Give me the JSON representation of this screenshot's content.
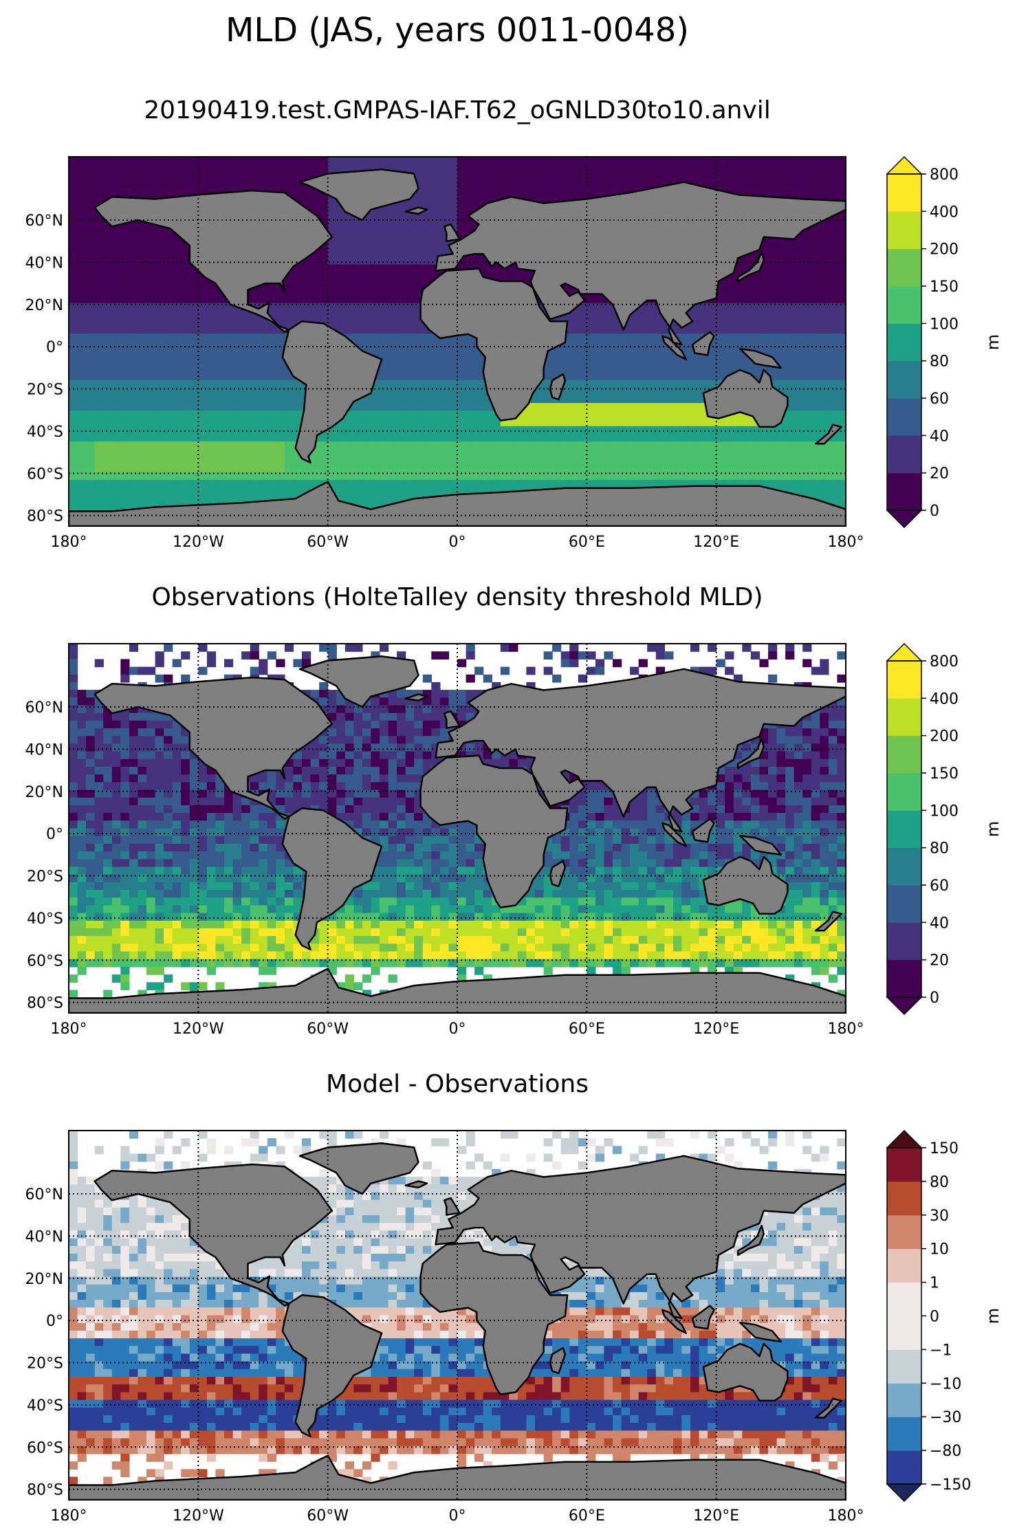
{
  "figure": {
    "title": "MLD (JAS, years 0011-0048)"
  },
  "panels": [
    {
      "title": "20190419.test.GMPAS-IAF.T62_oGNLD30to10.anvil",
      "colorbar_kind": "sequential",
      "colorbar_units": "m",
      "colorbar_ticks": [
        "0",
        "20",
        "40",
        "60",
        "80",
        "100",
        "150",
        "200",
        "400",
        "800"
      ],
      "colors": [
        "#440154",
        "#46337e",
        "#365c8d",
        "#277f8e",
        "#1fa187",
        "#4ac16d",
        "#6fc54f",
        "#bddf26",
        "#fde725"
      ],
      "ext_low": "#440154",
      "ext_high": "#fde725"
    },
    {
      "title": "Observations (HolteTalley density threshold MLD)",
      "colorbar_kind": "sequential",
      "colorbar_units": "m",
      "colorbar_ticks": [
        "0",
        "20",
        "40",
        "60",
        "80",
        "100",
        "150",
        "200",
        "400",
        "800"
      ],
      "colors": [
        "#440154",
        "#46337e",
        "#365c8d",
        "#277f8e",
        "#1fa187",
        "#4ac16d",
        "#6fc54f",
        "#bddf26",
        "#fde725"
      ],
      "ext_low": "#440154",
      "ext_high": "#fde725"
    },
    {
      "title": "Model - Observations",
      "colorbar_kind": "diverging",
      "colorbar_units": "m",
      "colorbar_ticks": [
        "−150",
        "−80",
        "−30",
        "−10",
        "−1",
        "0",
        "1",
        "10",
        "30",
        "80",
        "150"
      ],
      "colors": [
        "#2b3f99",
        "#2b7bba",
        "#76aac8",
        "#c8d1d6",
        "#efe9e9",
        "#efe9e9",
        "#e7c3b8",
        "#d0866a",
        "#b94b2e",
        "#801428"
      ],
      "ext_low": "#1b2a5c",
      "ext_high": "#4a0d18"
    }
  ],
  "map_axes": {
    "lon_labels": [
      "180°",
      "120°W",
      "60°W",
      "0°",
      "60°E",
      "120°E",
      "180°"
    ],
    "lat_labels": [
      "60°N",
      "40°N",
      "20°N",
      "0°",
      "20°S",
      "40°S",
      "60°S",
      "80°S"
    ],
    "land_color": "#808080",
    "missing_color": "#ffffff"
  }
}
